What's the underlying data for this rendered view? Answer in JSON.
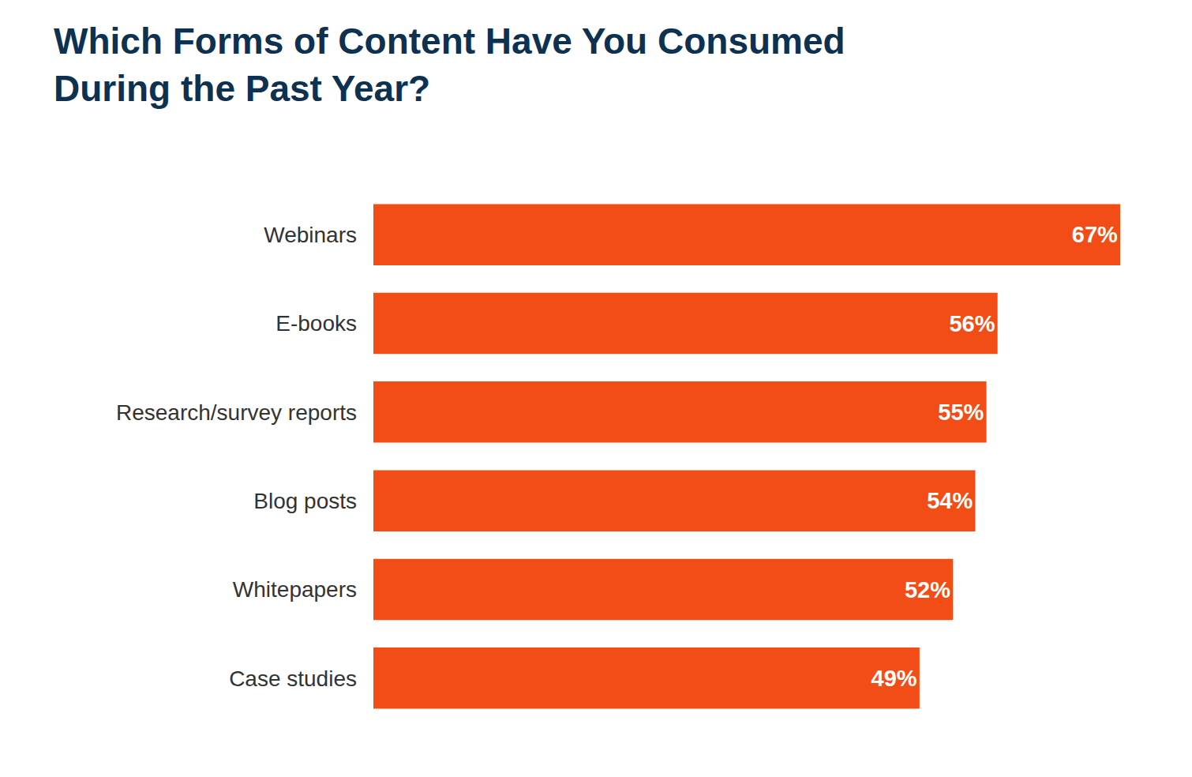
{
  "chart_data": {
    "type": "bar",
    "title": "Which Forms of Content Have You Consumed During the Past Year?",
    "orientation": "horizontal",
    "categories": [
      "Webinars",
      "E-books",
      "Research/survey reports",
      "Blog posts",
      "Whitepapers",
      "Case studies"
    ],
    "values": [
      67,
      56,
      55,
      54,
      52,
      49
    ],
    "value_labels": [
      "67%",
      "56%",
      "55%",
      "54%",
      "52%",
      "49%"
    ],
    "color": "#f24c17",
    "xlim": [
      0,
      67
    ],
    "data_labels": true,
    "tick_labels": "y",
    "grid": false
  }
}
